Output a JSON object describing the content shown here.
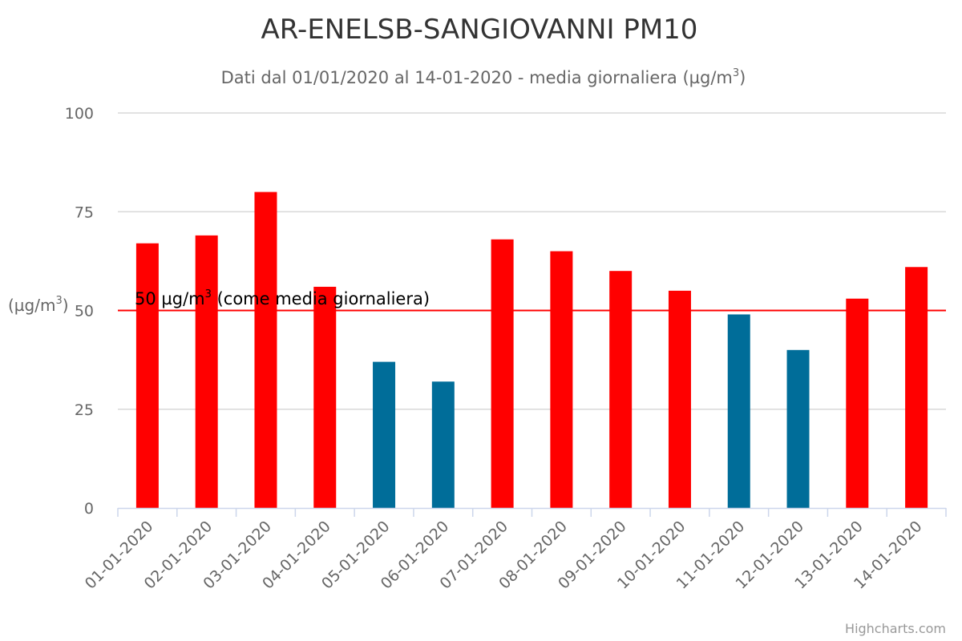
{
  "colors": {
    "above_threshold": "#ff0000",
    "below_threshold": "#006d99",
    "threshold_line": "#ff0000",
    "grid": "#d8d8d8",
    "axis": "#ccd6eb"
  },
  "credits": "Highcharts.com",
  "chart_data": {
    "type": "bar",
    "title": "AR-ENELSB-SANGIOVANNI PM10",
    "subtitle_main": "Dati dal 01/01/2020 al 14-01-2020 - media giornaliera (µg/m",
    "subtitle_sup": "3",
    "subtitle_tail": ")",
    "ylabel_main": "(µg/m",
    "ylabel_sup": "3",
    "ylabel_tail": ")",
    "ylim": [
      0,
      100
    ],
    "yticks": [
      0,
      25,
      50,
      75,
      100
    ],
    "grid": true,
    "categories": [
      "01-01-2020",
      "02-01-2020",
      "03-01-2020",
      "04-01-2020",
      "05-01-2020",
      "06-01-2020",
      "07-01-2020",
      "08-01-2020",
      "09-01-2020",
      "10-01-2020",
      "11-01-2020",
      "12-01-2020",
      "13-01-2020",
      "14-01-2020"
    ],
    "values": [
      67,
      69,
      80,
      56,
      37,
      32,
      68,
      65,
      60,
      55,
      49,
      40,
      53,
      61
    ],
    "threshold": {
      "value": 50,
      "label_main": "50 µg/m",
      "label_sup": "3",
      "label_tail": " (come media giornaliera)"
    }
  }
}
